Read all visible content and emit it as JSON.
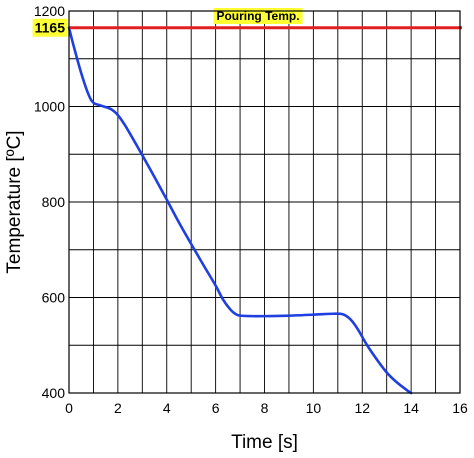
{
  "chart_data": {
    "type": "line",
    "xlabel": "Time [s]",
    "ylabel": "Temperature [ºC]",
    "xlim": [
      0,
      16
    ],
    "ylim": [
      400,
      1200
    ],
    "xticks": [
      "0",
      "2",
      "4",
      "6",
      "8",
      "10",
      "12",
      "14",
      "16"
    ],
    "yticks": [
      "400",
      "600",
      "800",
      "1000",
      "1200"
    ],
    "grid": true,
    "series": [
      {
        "color": "#1f3fe0",
        "x": [
          0,
          0.2,
          0.5,
          0.8,
          1.0,
          1.3,
          1.7,
          2.0,
          2.3,
          2.7,
          3.0,
          3.5,
          4.0,
          4.5,
          5.0,
          5.5,
          6.0,
          6.3,
          6.6,
          6.8,
          7.0,
          7.5,
          8.0,
          9.0,
          10.0,
          10.8,
          11.2,
          11.5,
          11.8,
          12.2,
          12.6,
          13.0,
          13.4,
          13.8,
          14.0
        ],
        "y": [
          1165,
          1125,
          1070,
          1025,
          1008,
          1002,
          995,
          982,
          960,
          925,
          898,
          852,
          805,
          757,
          712,
          668,
          625,
          596,
          575,
          566,
          562,
          561,
          561,
          562,
          564,
          566,
          565,
          555,
          535,
          500,
          470,
          443,
          423,
          407,
          400
        ]
      }
    ],
    "reference_line": {
      "y": 1165,
      "color": "#e02020",
      "label": "Pouring Temp.",
      "value_label": "1165",
      "highlight": "#ffff33"
    }
  }
}
